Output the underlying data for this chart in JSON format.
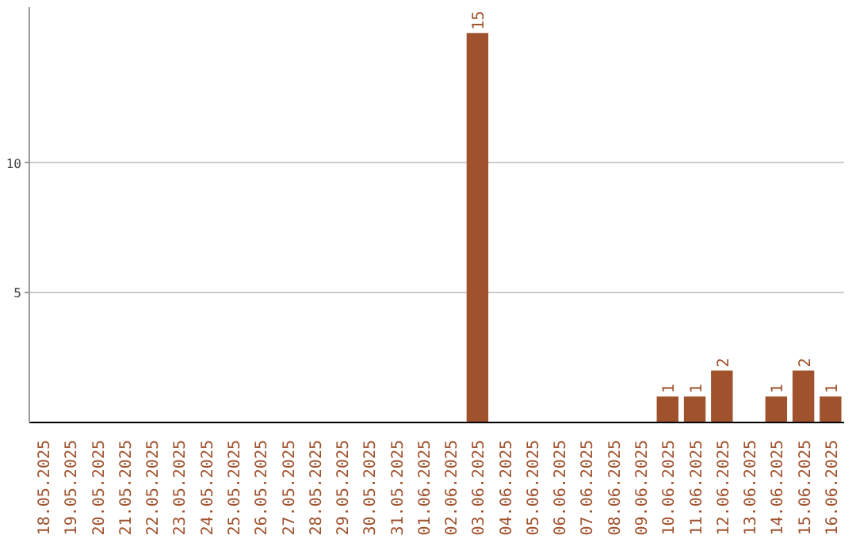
{
  "chart_data": {
    "type": "bar",
    "categories": [
      "18.05.2025",
      "19.05.2025",
      "20.05.2025",
      "21.05.2025",
      "22.05.2025",
      "23.05.2025",
      "24.05.2025",
      "25.05.2025",
      "26.05.2025",
      "27.05.2025",
      "28.05.2025",
      "29.05.2025",
      "30.05.2025",
      "31.05.2025",
      "01.06.2025",
      "02.06.2025",
      "03.06.2025",
      "04.06.2025",
      "05.06.2025",
      "06.06.2025",
      "07.06.2025",
      "08.06.2025",
      "09.06.2025",
      "10.06.2025",
      "11.06.2025",
      "12.06.2025",
      "13.06.2025",
      "14.06.2025",
      "15.06.2025",
      "16.06.2025"
    ],
    "values": [
      0,
      0,
      0,
      0,
      0,
      0,
      0,
      0,
      0,
      0,
      0,
      0,
      0,
      0,
      0,
      0,
      15,
      0,
      0,
      0,
      0,
      0,
      0,
      1,
      1,
      2,
      0,
      1,
      2,
      1
    ],
    "value_labels": [
      null,
      null,
      null,
      null,
      null,
      null,
      null,
      null,
      null,
      null,
      null,
      null,
      null,
      null,
      null,
      null,
      "15",
      null,
      null,
      null,
      null,
      null,
      null,
      "1",
      "1",
      "2",
      null,
      "1",
      "2",
      "1"
    ],
    "color": "#a0522d",
    "ylim": [
      0,
      16
    ],
    "yticks": [
      5,
      10
    ],
    "grid": "y"
  }
}
